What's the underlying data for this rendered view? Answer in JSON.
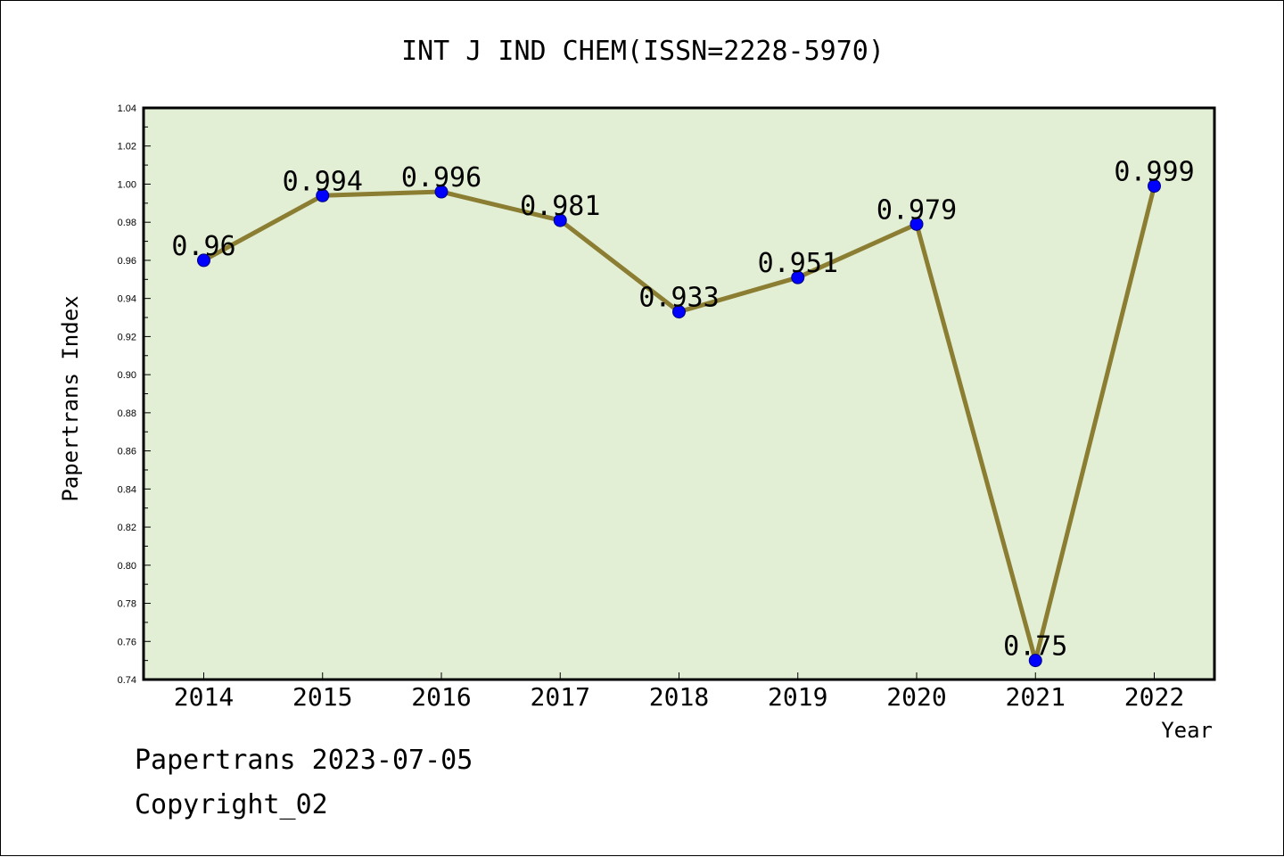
{
  "chart_data": {
    "type": "line",
    "title": "INT J IND CHEM(ISSN=2228-5970)",
    "xlabel": "Year",
    "ylabel": "Papertrans Index",
    "categories": [
      "2014",
      "2015",
      "2016",
      "2017",
      "2018",
      "2019",
      "2020",
      "2021",
      "2022"
    ],
    "series": [
      {
        "values": [
          0.96,
          0.994,
          0.996,
          0.981,
          0.933,
          0.951,
          0.979,
          0.75,
          0.999
        ]
      }
    ],
    "data_labels": [
      "0.96",
      "0.994",
      "0.996",
      "0.981",
      "0.933",
      "0.951",
      "0.979",
      "0.75",
      "0.999"
    ],
    "ylim": [
      0.74,
      1.04
    ],
    "yticks": [
      "0.74",
      "0.76",
      "0.78",
      "0.80",
      "0.82",
      "0.84",
      "0.86",
      "0.88",
      "0.90",
      "0.92",
      "0.94",
      "0.96",
      "0.98",
      "1.00",
      "1.02",
      "1.04"
    ],
    "grid": false,
    "colors": {
      "plot_background": "#e2efd4",
      "line": "#8b7d32",
      "marker": "#0000ff"
    }
  },
  "footer": {
    "source": "Papertrans 2023-07-05",
    "copyright": "Copyright_02"
  }
}
